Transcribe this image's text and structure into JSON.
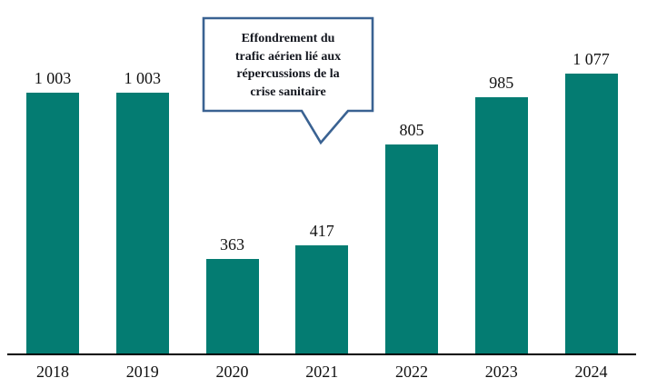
{
  "chart_data": {
    "type": "bar",
    "categories": [
      "2018",
      "2019",
      "2020",
      "2021",
      "2022",
      "2023",
      "2024"
    ],
    "values": [
      1003,
      1003,
      363,
      417,
      805,
      985,
      1077
    ],
    "value_labels": [
      "1 003",
      "1 003",
      "363",
      "417",
      "805",
      "985",
      "1 077"
    ],
    "title": "",
    "xlabel": "",
    "ylabel": "",
    "ylim": [
      0,
      1100
    ],
    "grid": false,
    "legend": false,
    "annotation": "Effondrement du trafic aérien lié aux répercussions de la crise sanitaire"
  },
  "callout": {
    "lines": [
      "Effondrement du",
      "trafic aérien lié aux",
      "répercussions de la",
      "crise sanitaire"
    ]
  },
  "colors": {
    "bar": "#047C72",
    "axis": "#000000",
    "background": "#FFFFFF",
    "callout_border": "#3A6292",
    "callout_fill": "#FFFFFF",
    "text": "#111111"
  }
}
